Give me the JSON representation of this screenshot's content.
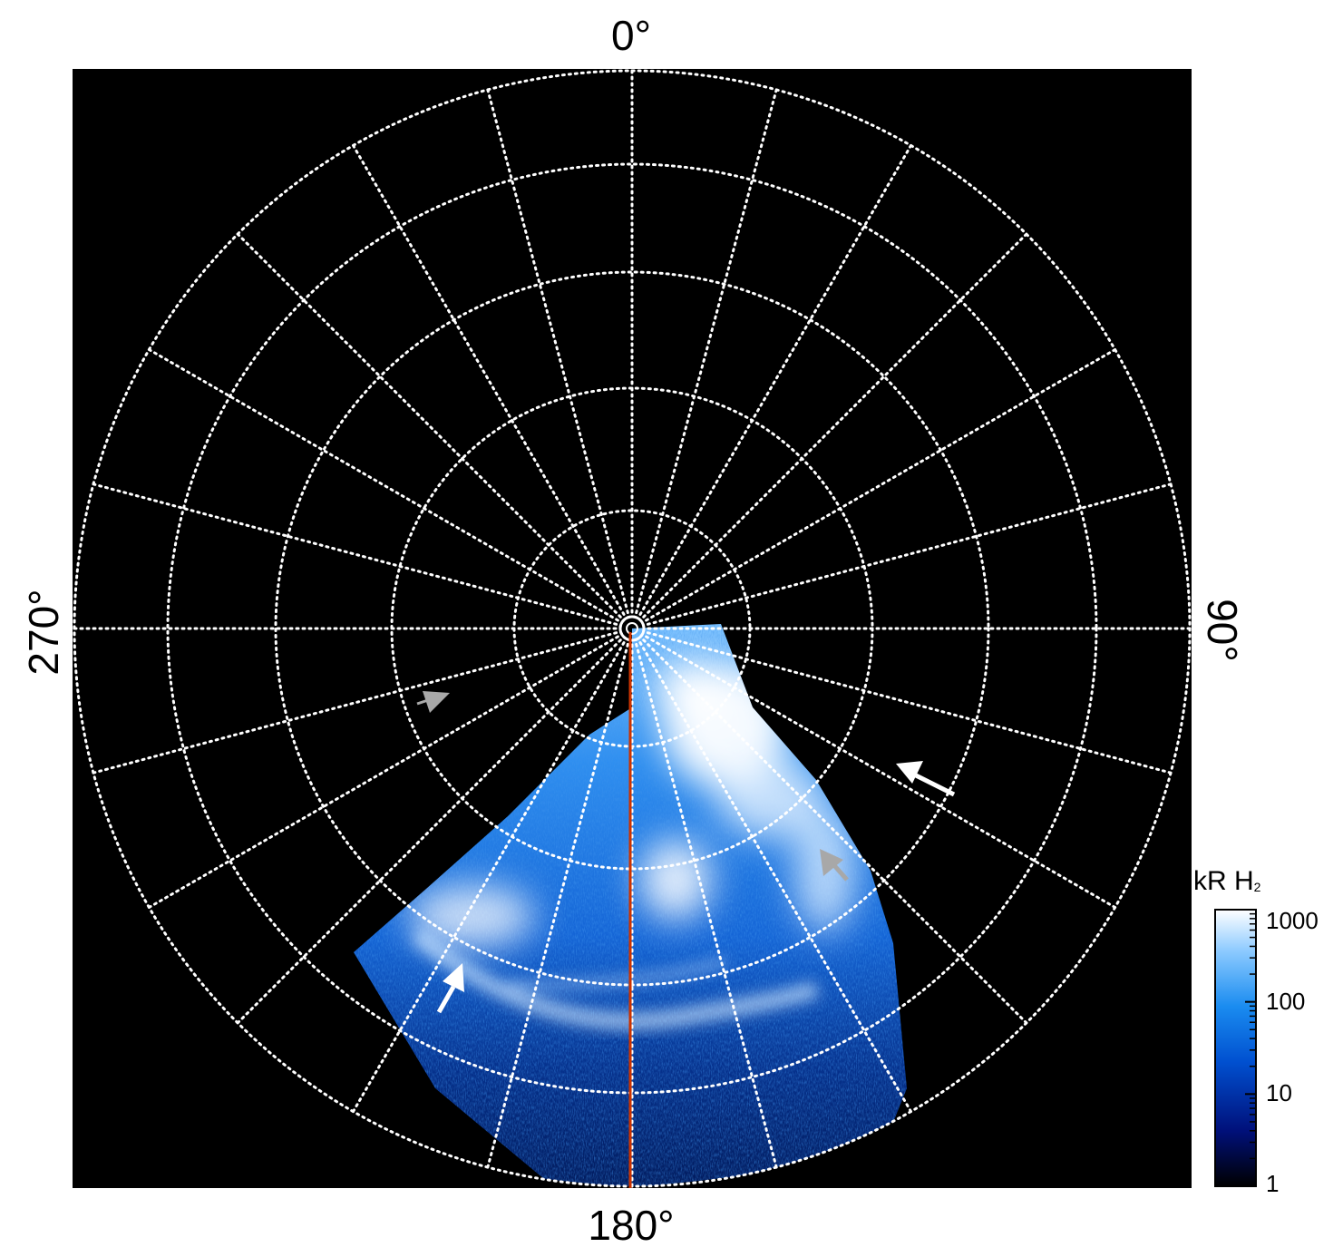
{
  "chart_data": {
    "type": "heatmap",
    "projection": "polar",
    "background": "#000000",
    "azimuth_labels": {
      "top": "0°",
      "right": "90°",
      "bottom": "180°",
      "left": "270°"
    },
    "grid": {
      "visible": true,
      "style": "dotted",
      "color": "#ffffff",
      "meridian_spacing_deg": 15,
      "ring_count": 6
    },
    "meridian_marker": {
      "azimuth_deg": 180,
      "color": "#cc3300"
    },
    "colorbar": {
      "title": "kR H",
      "title_subscript": "2",
      "scale": "log",
      "range": [
        1,
        1000
      ],
      "ticks": [
        1,
        10,
        100,
        1000
      ],
      "tick_labels": [
        "1",
        "10",
        "100",
        "1000"
      ],
      "colormap": [
        "#000000",
        "#00107a",
        "#0050d0",
        "#1a8cf0",
        "#8ccaff",
        "#ffffff"
      ]
    },
    "annotations": [
      {
        "kind": "arrow",
        "color": "#ffffff"
      },
      {
        "kind": "arrow",
        "color": "#ffffff"
      },
      {
        "kind": "arrow",
        "color": "#a8a8a8"
      },
      {
        "kind": "arrow",
        "color": "#a8a8a8"
      }
    ]
  }
}
